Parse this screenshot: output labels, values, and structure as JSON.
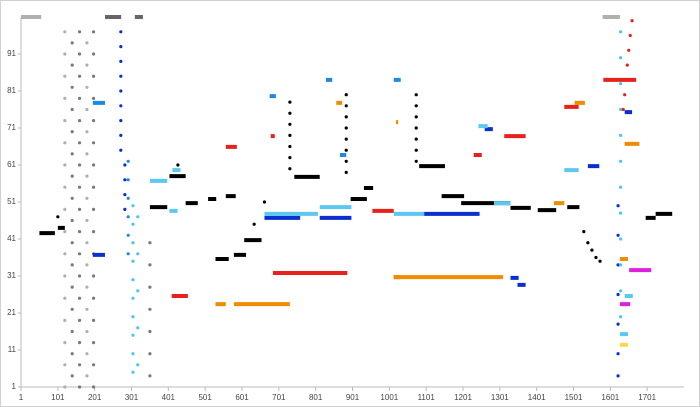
{
  "chart_data": {
    "type": "scatter",
    "xlim": [
      1,
      1801
    ],
    "ylim": [
      1,
      101
    ],
    "xticks": [
      1,
      101,
      201,
      301,
      401,
      501,
      601,
      701,
      801,
      901,
      1001,
      1101,
      1201,
      1301,
      1401,
      1501,
      1601,
      1701
    ],
    "yticks": [
      1,
      11,
      21,
      31,
      41,
      51,
      61,
      71,
      81,
      91
    ],
    "series": [
      {
        "color": "#b0b0b0",
        "x": [
          120,
          120,
          120,
          120,
          120,
          120,
          120,
          120,
          120,
          120,
          120,
          120,
          120,
          120,
          120,
          120,
          120,
          180,
          180,
          180,
          180,
          180,
          180,
          180,
          180,
          180,
          180,
          180,
          180,
          180,
          180,
          180,
          180
        ],
        "values": [
          97,
          91,
          85,
          79,
          73,
          67,
          61,
          55,
          49,
          43,
          37,
          31,
          25,
          19,
          13,
          7,
          1,
          94,
          88,
          82,
          76,
          70,
          64,
          58,
          52,
          46,
          40,
          34,
          28,
          22,
          16,
          10,
          4
        ]
      },
      {
        "color": "#7a7a7a",
        "x": [
          140,
          140,
          140,
          140,
          140,
          140,
          140,
          140,
          140,
          140,
          140,
          140,
          140,
          140,
          140,
          140,
          160,
          160,
          160,
          160,
          160,
          160,
          160,
          160,
          160,
          160,
          160,
          160,
          160,
          160,
          160,
          160,
          160,
          198,
          198,
          198,
          198,
          198,
          198,
          198,
          198,
          198,
          198,
          198,
          198,
          198,
          198,
          198,
          198,
          198,
          351,
          351,
          351,
          351,
          351,
          351,
          351
        ],
        "values": [
          94,
          88,
          82,
          76,
          70,
          64,
          58,
          52,
          46,
          40,
          34,
          28,
          22,
          16,
          10,
          4,
          97,
          91,
          85,
          79,
          73,
          67,
          61,
          55,
          49,
          43,
          37,
          31,
          25,
          19,
          13,
          7,
          1,
          97,
          91,
          85,
          79,
          73,
          67,
          61,
          55,
          49,
          43,
          37,
          31,
          25,
          19,
          13,
          7,
          1,
          40,
          34,
          28,
          22,
          16,
          10,
          4
        ]
      },
      {
        "color": "#0a2fd0",
        "x": [
          272,
          272,
          272,
          272,
          272,
          272,
          272,
          272,
          272,
          283,
          283,
          283,
          283,
          1622,
          1622,
          1622,
          1622,
          1622,
          1622,
          1622
        ],
        "values": [
          97,
          93,
          89,
          85,
          81,
          77,
          73,
          69,
          65,
          61,
          57,
          53,
          49,
          50,
          42,
          34,
          26,
          18,
          10,
          4
        ]
      },
      {
        "color": "#1e88e5",
        "x": [
          292,
          292,
          292,
          292,
          292,
          292
        ],
        "values": [
          62,
          57,
          52,
          47,
          42,
          37
        ]
      },
      {
        "color": "#4fc3f7",
        "x": [
          305,
          305,
          305,
          305,
          305,
          305,
          305,
          305,
          305,
          305,
          318,
          318,
          318,
          318,
          318,
          1629,
          1629,
          1629,
          1629,
          1629,
          1629,
          1629,
          1629,
          1629,
          1629,
          1629,
          1629
        ],
        "values": [
          50,
          45,
          40,
          35,
          30,
          25,
          20,
          15,
          10,
          5,
          47,
          37,
          27,
          17,
          7,
          97,
          90,
          83,
          76,
          69,
          62,
          55,
          48,
          41,
          34,
          27,
          20
        ]
      },
      {
        "color": "#000000",
        "x": [
          101,
          427,
          634,
          662,
          731,
          731,
          731,
          731,
          731,
          731,
          731,
          884,
          884,
          884,
          884,
          884,
          884,
          884,
          884,
          1074,
          1074,
          1074,
          1074,
          1074,
          1074,
          1074,
          1529,
          1540,
          1551,
          1562,
          1573
        ],
        "values": [
          47,
          61,
          45,
          51,
          78,
          75,
          72,
          69,
          66,
          63,
          60,
          80,
          77,
          74,
          71,
          68,
          65,
          62,
          59,
          80,
          77,
          74,
          71,
          68,
          65,
          62,
          43,
          40,
          38,
          36,
          35
        ]
      },
      {
        "color": "#e8211a",
        "x": [
          1660,
          1655,
          1651,
          1647,
          1643,
          1640,
          1636
        ],
        "values": [
          100,
          96,
          92,
          88,
          84,
          80,
          76
        ]
      },
      {
        "color": "#b0b0b0",
        "line": true,
        "x": [
          1,
          56,
          null,
          1580,
          1627
        ],
        "values": [
          101,
          101,
          null,
          101,
          101
        ]
      },
      {
        "color": "#666666",
        "line": true,
        "x": [
          229,
          273,
          null,
          310,
          332
        ],
        "values": [
          101,
          101,
          null,
          101,
          101
        ]
      },
      {
        "color": "#000000",
        "line": true,
        "x": [
          51,
          93,
          null,
          101,
          120,
          null,
          404,
          448,
          null,
          351,
          398,
          null,
          448,
          481,
          null,
          509,
          531,
          null,
          529,
          565,
          null,
          579,
          612,
          null,
          607,
          654,
          null,
          557,
          584,
          null,
          743,
          812,
          null,
          896,
          940,
          null,
          932,
          957,
          null,
          1082,
          1152,
          null,
          1143,
          1204,
          null,
          1196,
          1330,
          null,
          1330,
          1385,
          null,
          1484,
          1517,
          null,
          1404,
          1454,
          null,
          1697,
          1724,
          null,
          1724,
          1769
        ],
        "values": [
          42.6,
          42.6,
          null,
          44,
          44,
          null,
          58,
          58,
          null,
          49.6,
          49.6,
          null,
          50.7,
          50.7,
          null,
          51.8,
          51.8,
          null,
          35.6,
          35.6,
          null,
          36.7,
          36.7,
          null,
          40.7,
          40.7,
          null,
          52.6,
          52.6,
          null,
          57.8,
          57.8,
          null,
          51.8,
          51.8,
          null,
          54.8,
          54.8,
          null,
          60.7,
          60.7,
          null,
          52.6,
          52.6,
          null,
          50.7,
          50.7,
          null,
          49.4,
          49.4,
          null,
          49.6,
          49.6,
          null,
          48.8,
          48.8,
          null,
          46.7,
          46.7,
          null,
          47.8,
          47.8
        ]
      },
      {
        "color": "#0a2fd0",
        "line": true,
        "x": [
          196,
          229,
          null,
          662,
          759,
          null,
          812,
          898,
          null,
          1093,
          1246,
          null,
          1330,
          1352,
          null,
          1349,
          1371,
          null,
          1260,
          1282,
          null,
          1540,
          1571,
          null,
          1640,
          1660
        ],
        "values": [
          36.7,
          36.7,
          null,
          46.7,
          46.7,
          null,
          46.7,
          46.7,
          null,
          47.8,
          47.8,
          null,
          30.5,
          30.5,
          null,
          28.6,
          28.6,
          null,
          70.7,
          70.7,
          null,
          60.7,
          60.7,
          null,
          75.3,
          75.3
        ]
      },
      {
        "color": "#5bc8f0",
        "line": true,
        "x": [
          351,
          398,
          null,
          404,
          426,
          null,
          412,
          434,
          null,
          662,
          807,
          null,
          812,
          898,
          null,
          1013,
          1096,
          null,
          1243,
          1268,
          null,
          1285,
          1330,
          null,
          1476,
          1515,
          null,
          1640,
          1662,
          null,
          1627,
          1649
        ],
        "values": [
          56.7,
          56.7,
          null,
          48.6,
          48.6,
          null,
          59.6,
          59.6,
          null,
          47.8,
          47.8,
          null,
          49.6,
          49.6,
          null,
          47.8,
          47.8,
          null,
          71.5,
          71.5,
          null,
          50.7,
          50.7,
          null,
          59.6,
          59.6,
          null,
          25.6,
          25.6,
          null,
          15.3,
          15.3
        ]
      },
      {
        "color": "#1e88e5",
        "line": true,
        "x": [
          196,
          229,
          null,
          676,
          693,
          null,
          829,
          846,
          null,
          1013,
          1032,
          null,
          867,
          884
        ],
        "values": [
          77.8,
          77.8,
          null,
          79.6,
          79.6,
          null,
          84,
          84,
          null,
          84,
          84,
          null,
          63.7,
          63.7
        ]
      },
      {
        "color": "#e8211a",
        "line": true,
        "x": [
          557,
          587,
          null,
          410,
          454,
          null,
          685,
          887,
          null,
          955,
          1013,
          null,
          1230,
          1252,
          null,
          1313,
          1371,
          null,
          1476,
          1515,
          null,
          1582,
          1671,
          null,
          679,
          690,
          null,
          1013,
          1030
        ],
        "values": [
          65.9,
          65.9,
          null,
          25.6,
          25.6,
          null,
          31.8,
          31.8,
          null,
          48.6,
          48.6,
          null,
          63.7,
          63.7,
          null,
          68.8,
          68.8,
          null,
          76.7,
          76.7,
          null,
          84,
          84,
          null,
          68.8,
          68.8,
          null,
          30.7,
          30.7
        ]
      },
      {
        "color": "#f08c00",
        "line": true,
        "x": [
          529,
          557,
          null,
          579,
          731,
          null,
          1013,
          1310,
          null,
          1448,
          1476,
          null,
          1504,
          1532,
          null,
          857,
          873,
          null,
          1640,
          1680,
          null,
          1627,
          1649,
          null,
          1019,
          1025
        ],
        "values": [
          23.4,
          23.4,
          null,
          23.4,
          23.4,
          null,
          30.7,
          30.7,
          null,
          50.7,
          50.7,
          null,
          77.8,
          77.8,
          null,
          77.8,
          77.8,
          null,
          66.7,
          66.7,
          null,
          35.6,
          35.6,
          null,
          72.6,
          72.6
        ]
      },
      {
        "color": "#e020e0",
        "line": true,
        "x": [
          1652,
          1712,
          null,
          1627,
          1655
        ],
        "values": [
          32.6,
          32.6,
          null,
          23.4,
          23.4
        ]
      },
      {
        "color": "#ffd54f",
        "line": true,
        "x": [
          1627,
          1649
        ],
        "values": [
          12.4,
          12.4
        ]
      }
    ]
  }
}
